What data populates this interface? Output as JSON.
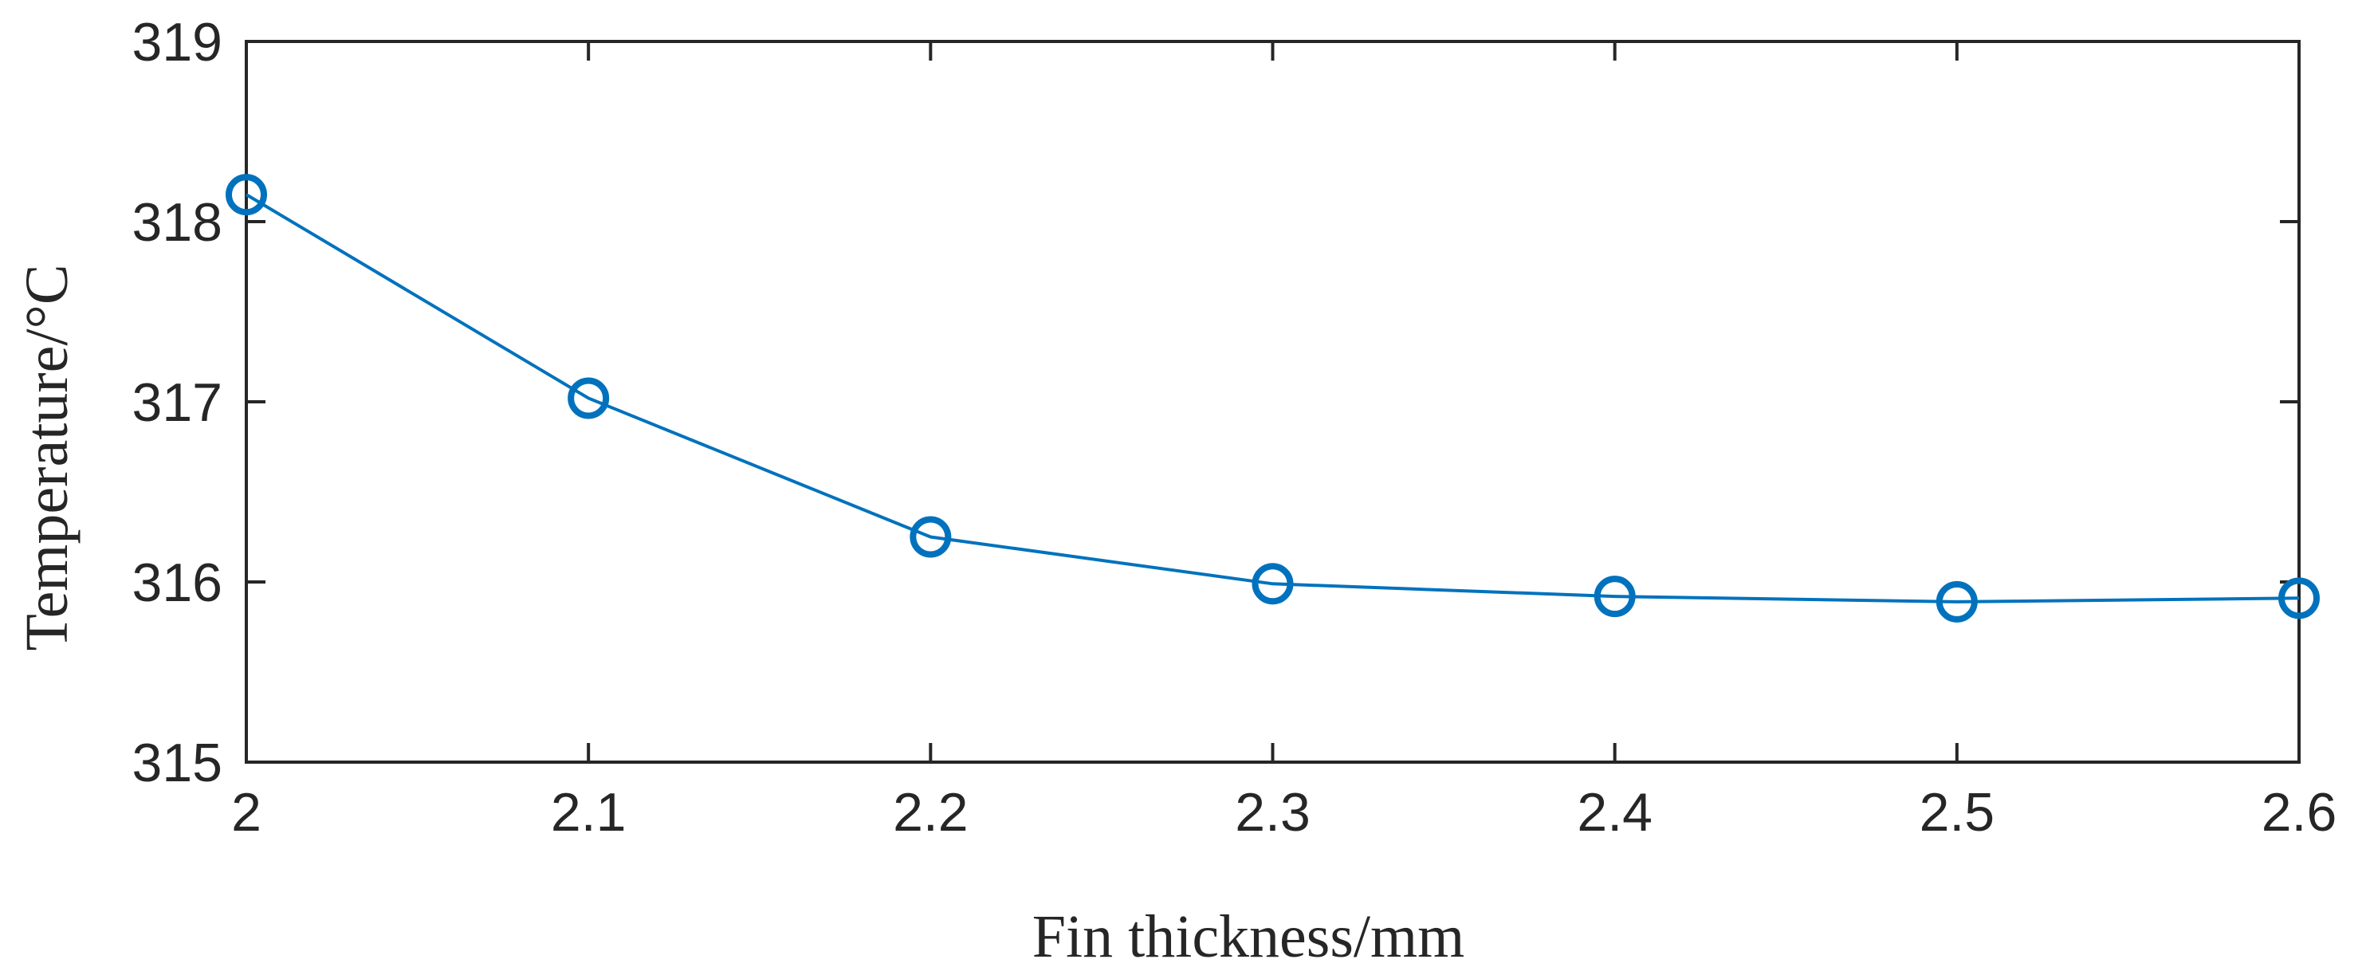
{
  "chart_data": {
    "type": "line",
    "title": "",
    "xlabel": "Fin thickness/mm",
    "ylabel": "Temperature/°C",
    "xlim": [
      2,
      2.6
    ],
    "ylim": [
      315,
      319
    ],
    "xticks": [
      "2",
      "2.1",
      "2.2",
      "2.3",
      "2.4",
      "2.5",
      "2.6"
    ],
    "yticks": [
      "315",
      "316",
      "317",
      "318",
      "319"
    ],
    "grid": false,
    "legend": "none",
    "series": [
      {
        "color": "#0072BD",
        "marker": "circle",
        "x": [
          2.0,
          2.1,
          2.2,
          2.3,
          2.4,
          2.5,
          2.6
        ],
        "y": [
          318.15,
          317.02,
          316.25,
          315.99,
          315.92,
          315.89,
          315.91
        ]
      }
    ]
  }
}
